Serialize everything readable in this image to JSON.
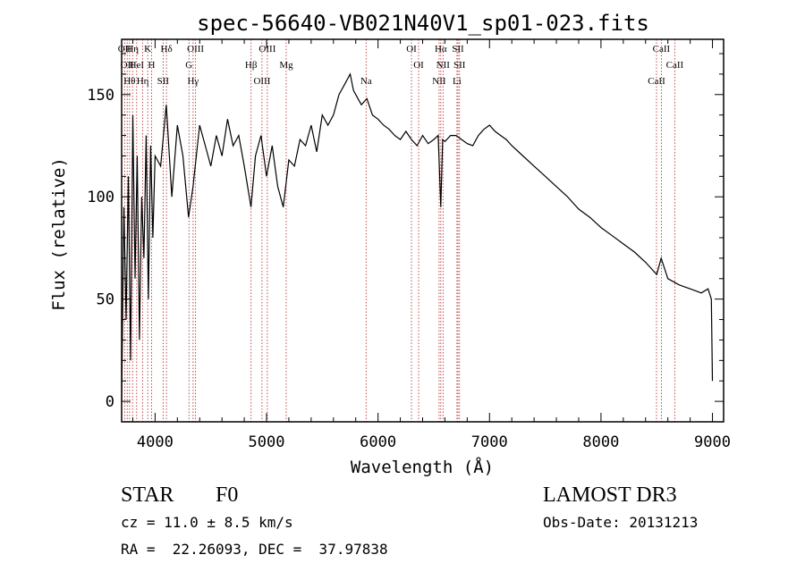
{
  "chart_data": {
    "type": "line",
    "title": "spec-56640-VB021N40V1_sp01-023.fits",
    "xlabel": "Wavelength (Å)",
    "ylabel": "Flux (relative)",
    "xlim": [
      3700,
      9100
    ],
    "ylim": [
      -10,
      177
    ],
    "x_ticks": [
      4000,
      5000,
      6000,
      7000,
      8000,
      9000
    ],
    "y_ticks": [
      0,
      50,
      100,
      150
    ],
    "x_tick_labels": [
      "4000",
      "5000",
      "6000",
      "7000",
      "8000",
      "9000"
    ],
    "y_tick_labels": [
      "0",
      "50",
      "100",
      "150"
    ],
    "line_color": "#000000",
    "marker_color": "#b22222",
    "series": [
      {
        "name": "spectrum",
        "x": [
          3700,
          3720,
          3740,
          3760,
          3780,
          3800,
          3820,
          3840,
          3860,
          3880,
          3900,
          3920,
          3940,
          3960,
          3980,
          4000,
          4050,
          4100,
          4150,
          4200,
          4250,
          4300,
          4340,
          4400,
          4450,
          4500,
          4550,
          4600,
          4650,
          4700,
          4750,
          4800,
          4860,
          4900,
          4950,
          5000,
          5050,
          5100,
          5150,
          5200,
          5250,
          5300,
          5350,
          5400,
          5450,
          5500,
          5550,
          5600,
          5650,
          5700,
          5750,
          5780,
          5800,
          5850,
          5900,
          5950,
          6000,
          6050,
          6100,
          6150,
          6200,
          6250,
          6300,
          6350,
          6400,
          6450,
          6500,
          6540,
          6563,
          6580,
          6600,
          6650,
          6700,
          6750,
          6800,
          6850,
          6900,
          6950,
          7000,
          7050,
          7100,
          7150,
          7200,
          7300,
          7400,
          7500,
          7600,
          7700,
          7800,
          7900,
          8000,
          8100,
          8200,
          8300,
          8400,
          8500,
          8540,
          8600,
          8700,
          8800,
          8900,
          8960,
          8990,
          9000
        ],
        "values": [
          0,
          95,
          40,
          110,
          20,
          140,
          60,
          120,
          30,
          100,
          70,
          130,
          50,
          125,
          80,
          120,
          115,
          145,
          100,
          135,
          120,
          90,
          105,
          135,
          125,
          115,
          130,
          120,
          138,
          125,
          130,
          115,
          95,
          120,
          130,
          110,
          125,
          105,
          95,
          118,
          115,
          128,
          125,
          135,
          122,
          140,
          135,
          140,
          150,
          155,
          160,
          152,
          150,
          145,
          148,
          140,
          138,
          135,
          133,
          130,
          128,
          132,
          128,
          125,
          130,
          126,
          128,
          130,
          95,
          128,
          127,
          130,
          130,
          128,
          126,
          125,
          130,
          133,
          135,
          132,
          130,
          128,
          125,
          120,
          115,
          110,
          105,
          100,
          94,
          90,
          85,
          81,
          77,
          73,
          68,
          62,
          70,
          60,
          57,
          55,
          53,
          55,
          50,
          10
        ]
      }
    ],
    "lines": [
      {
        "x": 3727,
        "label": "OII"
      },
      {
        "x": 3750,
        "label": "OII"
      },
      {
        "x": 3771,
        "label": "Hθ"
      },
      {
        "x": 3798,
        "label": "Hη"
      },
      {
        "x": 3835,
        "label": "HeI"
      },
      {
        "x": 3889,
        "label": "Hη"
      },
      {
        "x": 3934,
        "label": "K"
      },
      {
        "x": 3969,
        "label": "H"
      },
      {
        "x": 4072,
        "label": "SII"
      },
      {
        "x": 4102,
        "label": "Hδ"
      },
      {
        "x": 4304,
        "label": "G"
      },
      {
        "x": 4341,
        "label": "Hγ"
      },
      {
        "x": 4363,
        "label": "OIII"
      },
      {
        "x": 4861,
        "label": "Hβ"
      },
      {
        "x": 4959,
        "label": "OIII"
      },
      {
        "x": 5007,
        "label": "OIII"
      },
      {
        "x": 5176,
        "label": "Mg"
      },
      {
        "x": 5893,
        "label": "Na"
      },
      {
        "x": 6300,
        "label": "OI"
      },
      {
        "x": 6364,
        "label": "OI"
      },
      {
        "x": 6548,
        "label": "NII"
      },
      {
        "x": 6563,
        "label": "Hα"
      },
      {
        "x": 6583,
        "label": "NII"
      },
      {
        "x": 6708,
        "label": "Li"
      },
      {
        "x": 6717,
        "label": "SII"
      },
      {
        "x": 6731,
        "label": "SII"
      },
      {
        "x": 8498,
        "label": "CaII"
      },
      {
        "x": 8542,
        "label": "CaII"
      },
      {
        "x": 8662,
        "label": "CaII"
      }
    ]
  },
  "info": {
    "object_class": "STAR",
    "subclass": "F0",
    "survey": "LAMOST DR3",
    "redshift": "cz = 11.0 ± 8.5 km/s",
    "obs_date": "Obs-Date: 20131213",
    "coords": "RA =  22.26093, DEC =  37.97838"
  }
}
